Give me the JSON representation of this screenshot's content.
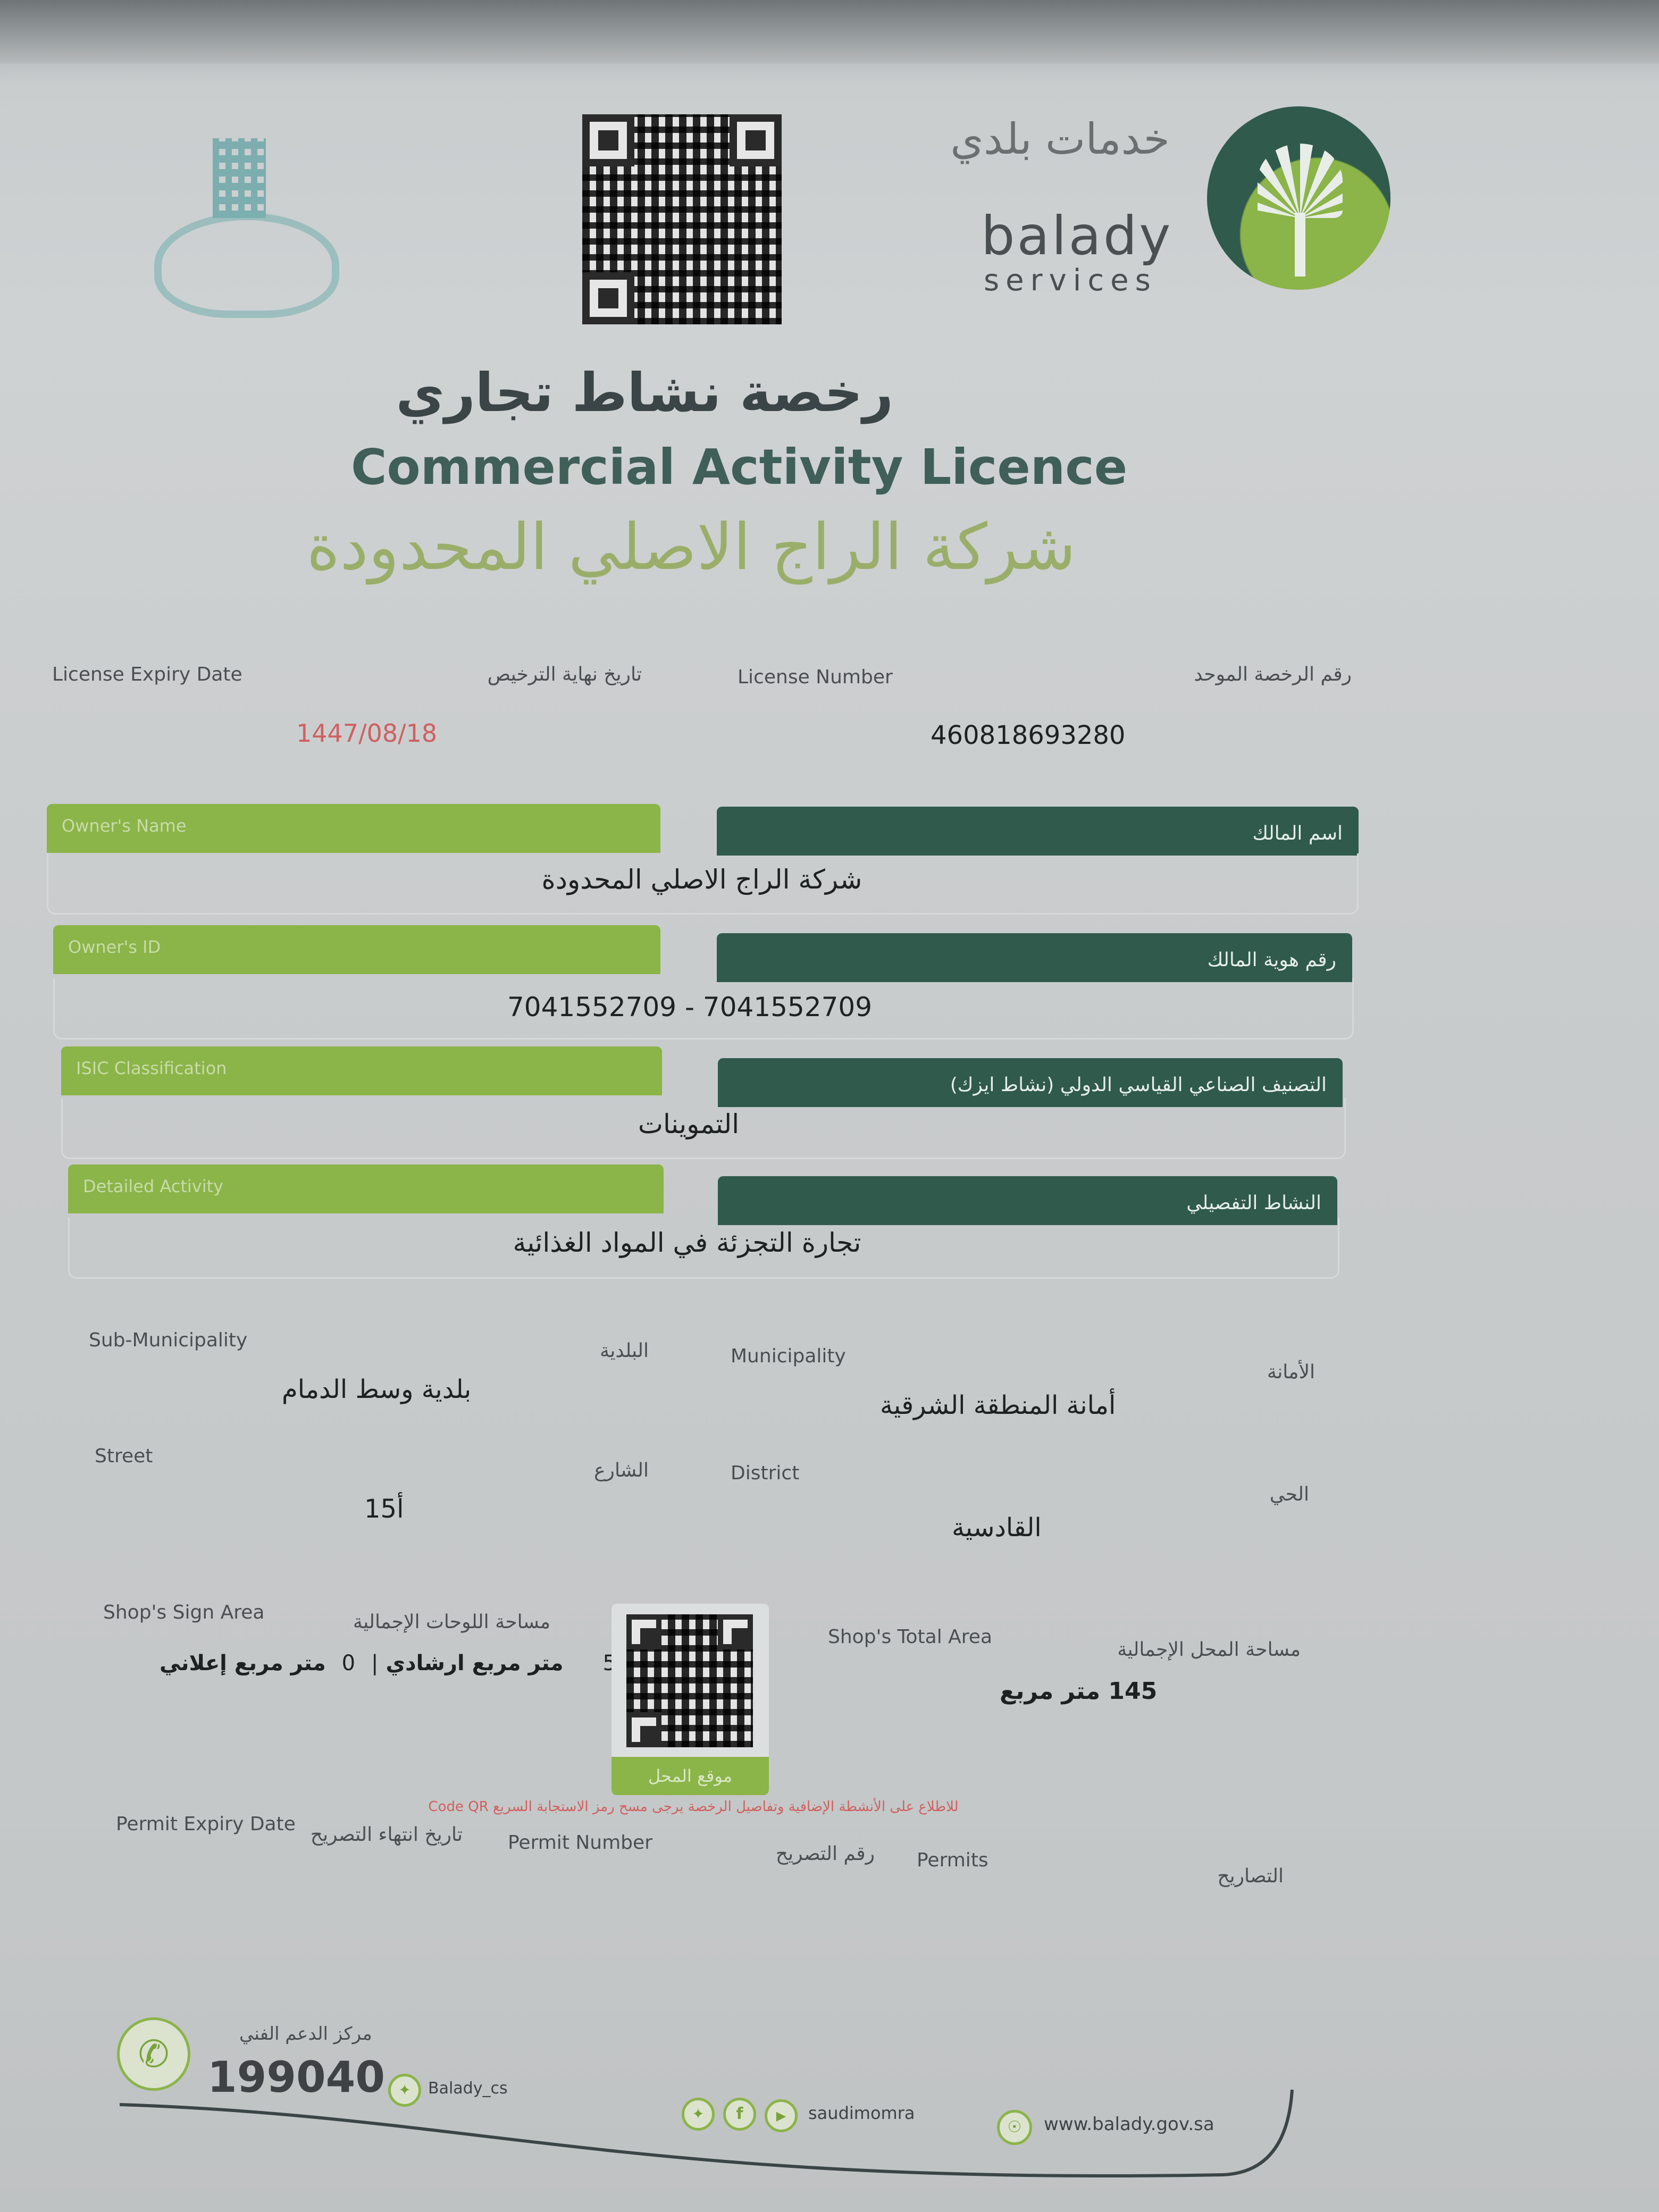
{
  "header": {
    "brand_arabic": "خدمات بلدي",
    "brand_name": "balady",
    "brand_sub": "services",
    "title_arabic": "رخصة نشاط تجاري",
    "title_english": "Commercial Activity Licence",
    "company_name": "شركة الراج الاصلي المحدودة"
  },
  "licence": {
    "expiry_label_en": "License Expiry Date",
    "expiry_label_ar": "تاريخ نهاية الترخيص",
    "number_label_en": "License Number",
    "number_label_ar": "رقم الرخصة الموحد",
    "expiry_value": "1447/08/18",
    "number_value": "460818693280"
  },
  "fields": [
    {
      "label_en": "Owner's Name",
      "label_ar": "اسم المالك",
      "value": "شركة الراج الاصلي المحدودة"
    },
    {
      "label_en": "Owner's ID",
      "label_ar": "رقم هوية المالك",
      "value": "7041552709 - 7041552709"
    },
    {
      "label_en": "ISIC Classification",
      "label_ar": "التصنيف الصناعي القياسي الدولي (نشاط ايزك)",
      "value": "التموينات"
    },
    {
      "label_en": "Detailed Activity",
      "label_ar": "النشاط التفصيلي",
      "value": "تجارة التجزئة في المواد الغذائية"
    }
  ],
  "location": {
    "sub_municipality_en": "Sub-Municipality",
    "sub_municipality_ar": "البلدية",
    "sub_municipality_value": "بلدية وسط الدمام",
    "municipality_en": "Municipality",
    "municipality_ar": "الأمانة",
    "municipality_value": "أمانة المنطقة الشرقية",
    "street_en": "Street",
    "street_ar": "الشارع",
    "street_value": "أ15",
    "district_en": "District",
    "district_ar": "الحي",
    "district_value": "القادسية"
  },
  "areas": {
    "sign_area_en": "Shop's Sign Area",
    "sign_area_ar": "مساحة اللوحات الإجمالية",
    "sign_guide_value": "5",
    "sign_guide_unit": "متر مربع ارشادي",
    "sign_ad_value": "0",
    "sign_ad_unit": "متر مربع إعلاني",
    "total_area_en": "Shop's Total Area",
    "total_area_ar": "مساحة المحل الإجمالية",
    "total_area_value": "145 متر مربع",
    "qr_caption": "موقع المحل",
    "qr_note": "للاطلاع على الأنشطة الإضافية وتفاصيل الرخصة يرجى مسح رمز الاستجابة السريع Code QR"
  },
  "permits": {
    "expiry_en": "Permit Expiry Date",
    "expiry_ar": "تاريخ انتهاء التصريح",
    "number_en": "Permit Number",
    "number_ar": "رقم التصريح",
    "permits_en": "Permits",
    "permits_ar": "التصاريح"
  },
  "footer": {
    "support_label": "مركز الدعم الفني",
    "support_number": "199040",
    "twitter_handle": "Balady_cs",
    "social_handle": "saudimomra",
    "website": "www.balady.gov.sa"
  },
  "colors": {
    "green": "#8bb449",
    "dark_green": "#2f5a4c",
    "red": "#d06060"
  }
}
